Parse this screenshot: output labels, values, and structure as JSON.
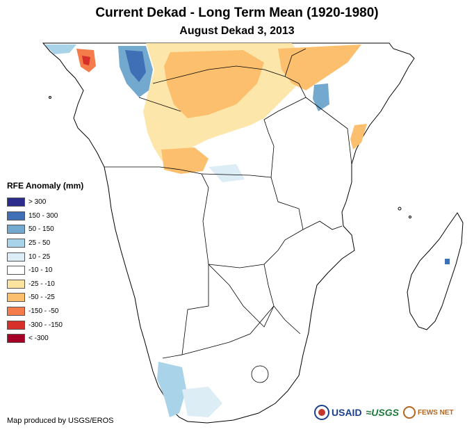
{
  "title": "Current Dekad - Long Term Mean (1920-1980)",
  "subtitle": "August Dekad 3, 2013",
  "legend": {
    "title": "RFE Anomaly (mm)",
    "items": [
      {
        "label": "> 300",
        "color": "#2b2c8c"
      },
      {
        "label": "150 - 300",
        "color": "#3f6fb5"
      },
      {
        "label": "50 - 150",
        "color": "#74a9cf"
      },
      {
        "label": "25 - 50",
        "color": "#a9d3e8"
      },
      {
        "label": "10 - 25",
        "color": "#dcedf5"
      },
      {
        "label": "-10 - 10",
        "color": "#ffffff"
      },
      {
        "label": "-25 - -10",
        "color": "#fde3a0"
      },
      {
        "label": "-50 - -25",
        "color": "#fbbf6e"
      },
      {
        "label": "-150 - -50",
        "color": "#f47c4a"
      },
      {
        "label": "-300 - -150",
        "color": "#d7302a"
      },
      {
        "label": "< -300",
        "color": "#a50026"
      }
    ]
  },
  "credit": "Map produced by USGS/EROS",
  "logos": {
    "usaid": "USAID",
    "usgs": "USGS",
    "fews": "FEWS NET"
  }
}
